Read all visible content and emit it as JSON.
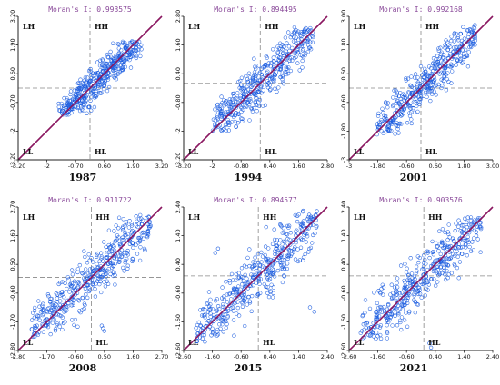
{
  "chart_data": [
    {
      "type": "scatter",
      "moran_label": "Moran's I: 0.993575",
      "year": "1987",
      "x_ticks": [
        "-3.20",
        "-2",
        "-0.70",
        "0.60",
        "1.90",
        "3.20"
      ],
      "y_ticks": [
        "-3.20",
        "-2",
        "-0.70",
        "0.60",
        "1.90",
        "3.20"
      ],
      "xlim": [
        -3.2,
        3.2
      ],
      "ylim": [
        -3.2,
        3.2
      ],
      "quadrants": {
        "lh": "LH",
        "hh": "HH",
        "ll": "LL",
        "hl": "HL"
      },
      "fit_line": [
        [
          -3.2,
          -3.2
        ],
        [
          3.2,
          3.2
        ]
      ],
      "cloud": {
        "x_range": [
          -1.4,
          2.3
        ],
        "y_range": [
          -1.2,
          2.1
        ],
        "band": 0.8,
        "n": 420
      },
      "outliers": [
        [
          0.05,
          -1.0
        ],
        [
          0.2,
          -0.85
        ]
      ]
    },
    {
      "type": "scatter",
      "moran_label": "Moran's I: 0.894495",
      "year": "1994",
      "x_ticks": [
        "-3.20",
        "-2",
        "-0.80",
        "0.40",
        "1.60",
        "2.80"
      ],
      "y_ticks": [
        "-3.20",
        "-2",
        "-0.80",
        "0.40",
        "1.60",
        "2.80"
      ],
      "xlim": [
        -3.2,
        2.8
      ],
      "ylim": [
        -3.2,
        2.8
      ],
      "quadrants": {
        "lh": "LH",
        "hh": "HH",
        "ll": "LL",
        "hl": "HL"
      },
      "fit_line": [
        [
          -3.2,
          -3.2
        ],
        [
          2.8,
          2.8
        ]
      ],
      "cloud": {
        "x_range": [
          -2.0,
          2.2
        ],
        "y_range": [
          -2.0,
          2.4
        ],
        "band": 1.0,
        "n": 420
      },
      "outliers": []
    },
    {
      "type": "scatter",
      "moran_label": "Moran's I: 0.992168",
      "year": "2001",
      "x_ticks": [
        "-3",
        "-1.80",
        "-0.60",
        "0.60",
        "1.80",
        "3.00"
      ],
      "y_ticks": [
        "-3",
        "-1.80",
        "-0.60",
        "0.60",
        "1.80",
        "3.00"
      ],
      "xlim": [
        -3.0,
        3.0
      ],
      "ylim": [
        -3.0,
        3.0
      ],
      "quadrants": {
        "lh": "LH",
        "hh": "HH",
        "ll": "LL",
        "hl": "HL"
      },
      "fit_line": [
        [
          -3.0,
          -3.0
        ],
        [
          3.0,
          3.0
        ]
      ],
      "cloud": {
        "x_range": [
          -1.9,
          2.3
        ],
        "y_range": [
          -2.0,
          2.7
        ],
        "band": 0.9,
        "n": 420
      },
      "outliers": []
    },
    {
      "type": "scatter",
      "moran_label": "Moran's I: 0.911722",
      "year": "2008",
      "x_ticks": [
        "-2.80",
        "-1.70",
        "-0.60",
        "0.50",
        "1.60",
        "2.70"
      ],
      "y_ticks": [
        "-2.80",
        "-1.70",
        "-0.60",
        "0.50",
        "1.60",
        "2.70"
      ],
      "xlim": [
        -2.8,
        2.7
      ],
      "ylim": [
        -2.8,
        2.7
      ],
      "quadrants": {
        "lh": "LH",
        "hh": "HH",
        "ll": "LL",
        "hl": "HL"
      },
      "fit_line": [
        [
          -2.8,
          -2.8
        ],
        [
          2.7,
          2.7
        ]
      ],
      "cloud": {
        "x_range": [
          -2.3,
          2.3
        ],
        "y_range": [
          -2.3,
          2.4
        ],
        "band": 1.0,
        "n": 440
      },
      "outliers": [
        [
          0.45,
          -1.95
        ],
        [
          0.5,
          -2.05
        ],
        [
          0.4,
          -1.85
        ]
      ]
    },
    {
      "type": "scatter",
      "moran_label": "Moran's I: 0.894577",
      "year": "2015",
      "x_ticks": [
        "-2.60",
        "-1.60",
        "-0.60",
        "0.40",
        "1.40",
        "2.40"
      ],
      "y_ticks": [
        "-2.60",
        "-1.60",
        "-0.60",
        "0.40",
        "1.40",
        "2.40"
      ],
      "xlim": [
        -2.6,
        2.4
      ],
      "ylim": [
        -2.6,
        2.4
      ],
      "quadrants": {
        "lh": "LH",
        "hh": "HH",
        "ll": "LL",
        "hl": "HL"
      },
      "fit_line": [
        [
          -2.6,
          -2.6
        ],
        [
          2.4,
          2.4
        ]
      ],
      "cloud": {
        "x_range": [
          -2.2,
          2.1
        ],
        "y_range": [
          -2.3,
          2.3
        ],
        "band": 1.0,
        "n": 440
      },
      "outliers": [
        [
          -1.5,
          0.8
        ],
        [
          -1.4,
          0.95
        ],
        [
          1.8,
          -1.1
        ],
        [
          1.95,
          -1.25
        ]
      ]
    },
    {
      "type": "scatter",
      "moran_label": "Moran's I: 0.903576",
      "year": "2021",
      "x_ticks": [
        "-2.60",
        "-1.60",
        "-0.60",
        "0.40",
        "1.40",
        "2.40"
      ],
      "y_ticks": [
        "-2.60",
        "-1.60",
        "-0.60",
        "0.40",
        "1.40",
        "2.40"
      ],
      "xlim": [
        -2.6,
        2.4
      ],
      "ylim": [
        -2.6,
        2.4
      ],
      "quadrants": {
        "lh": "LH",
        "hh": "HH",
        "ll": "LL",
        "hl": "HL"
      },
      "fit_line": [
        [
          -2.6,
          -2.6
        ],
        [
          2.4,
          2.4
        ]
      ],
      "cloud": {
        "x_range": [
          -2.2,
          2.0
        ],
        "y_range": [
          -2.2,
          2.1
        ],
        "band": 0.95,
        "n": 440
      },
      "outliers": [
        [
          0.2,
          -2.35
        ],
        [
          0.25,
          -2.5
        ]
      ]
    }
  ],
  "colors": {
    "point": "#1f5fe0",
    "fit_line": "#8a1760",
    "moran_text": "#8a4a9a",
    "axis": "#222222",
    "guide": "#888888"
  }
}
